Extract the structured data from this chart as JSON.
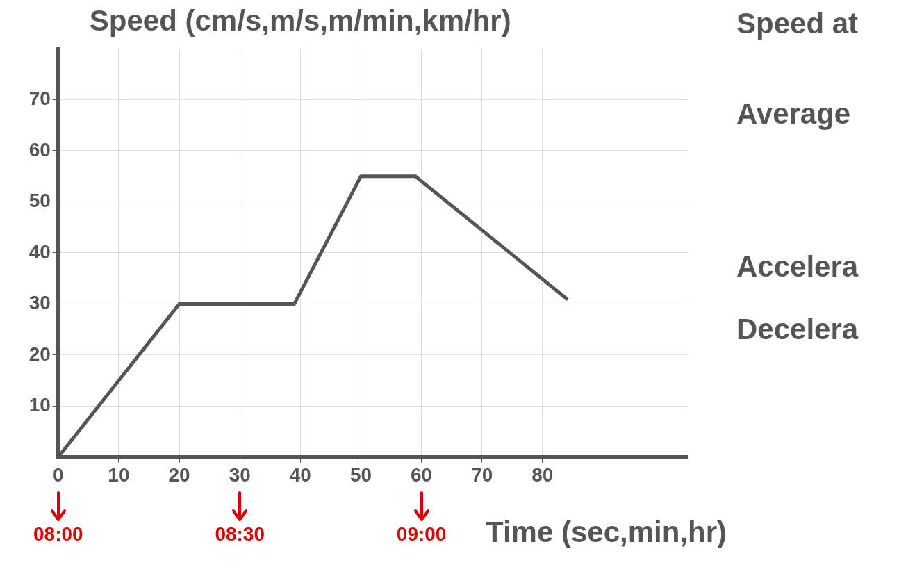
{
  "chart_data": {
    "type": "line",
    "ylabel": "Speed (cm/s,m/s,m/min,km/hr)",
    "xlabel": "Time (sec,min,hr)",
    "x": [
      0,
      20,
      39,
      50,
      59,
      84
    ],
    "series": [
      {
        "color": "#555555",
        "values": [
          0,
          30,
          30,
          55,
          55,
          31
        ]
      }
    ],
    "xlim": [
      0,
      104
    ],
    "ylim": [
      0,
      80
    ],
    "xticks": [
      0,
      10,
      20,
      30,
      40,
      50,
      60,
      70,
      80
    ],
    "yticks": [
      10,
      20,
      30,
      40,
      50,
      60,
      70
    ],
    "grid": true,
    "legend": false,
    "marker": "none",
    "line_style": "solid",
    "x2lim": [
      8,
      9.7333
    ],
    "x2ticks": [
      {
        "value": 8,
        "label": "08:00"
      },
      {
        "value": 8.5,
        "label": "08:30"
      },
      {
        "value": 9,
        "label": "09:00"
      }
    ],
    "annotations": [
      "Speed at",
      "Average",
      "Accelera",
      "Decelera"
    ]
  }
}
